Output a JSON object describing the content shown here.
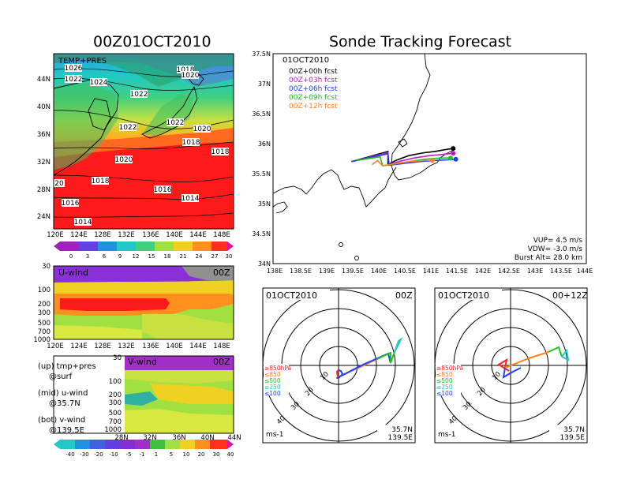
{
  "left_title": "00Z01OCT2010",
  "main_title": "Sonde Tracking Forecast",
  "colors": {
    "ocean_warm": "#ff1a1a",
    "ocean_orange": "#ff7a2a",
    "ocean_yellow": "#f0d020",
    "ocean_green": "#80d040",
    "ocean_cyan": "#20c8c8",
    "ocean_blue": "#2090e0",
    "track_00": "#000000",
    "track_03": "#c020c0",
    "track_06": "#2040ff",
    "track_09": "#20c020",
    "track_12": "#ff8020"
  },
  "surface_map": {
    "label": "TEMP+PRES",
    "lon_ticks": [
      "120E",
      "124E",
      "128E",
      "132E",
      "136E",
      "140E",
      "144E",
      "148E"
    ],
    "lat_ticks": [
      "44N",
      "40N",
      "36N",
      "32N",
      "28N",
      "24N"
    ],
    "isobar_labels": [
      "1026",
      "1022",
      "1024",
      "1022",
      "1018",
      "1020",
      "1022",
      "1022",
      "1020",
      "1018",
      "1018",
      "1020",
      "1018",
      "1016",
      "1014",
      "20",
      "1016",
      "1014",
      "1016"
    ],
    "colorbar_ticks": [
      "0",
      "3",
      "6",
      "9",
      "12",
      "15",
      "18",
      "21",
      "24",
      "27",
      "30"
    ]
  },
  "u_wind": {
    "label": "U-wind",
    "time": "00Z",
    "p_ticks": [
      "30",
      "100",
      "200",
      "300",
      "500",
      "700",
      "1000"
    ],
    "lon_ticks": [
      "120E",
      "124E",
      "128E",
      "132E",
      "136E",
      "140E",
      "144E",
      "148E"
    ]
  },
  "v_wind": {
    "label": "V-wind",
    "time": "00Z",
    "p_ticks": [
      "30",
      "100",
      "200",
      "300",
      "500",
      "700",
      "1000"
    ],
    "lat_ticks": [
      "28N",
      "32N",
      "36N",
      "40N",
      "44N"
    ],
    "colorbar_ticks": [
      "-40",
      "-30",
      "-20",
      "-10",
      "-5",
      "-1",
      "1",
      "5",
      "10",
      "20",
      "30",
      "40"
    ]
  },
  "notes": {
    "line1": "(up) tmp+pres",
    "line2": "@surf",
    "line3": "(mid) u-wind",
    "line4": "@35.7N",
    "line5": "(bot) v-wind",
    "line6": "@139.5E"
  },
  "track_map": {
    "date": "01OCT2010",
    "legend": [
      "00Z+00h fcst",
      "00Z+03h fcst",
      "00Z+06h fcst",
      "00Z+09h fcst",
      "00Z+12h fcst"
    ],
    "lat_ticks": [
      "37.5N",
      "37N",
      "36.5N",
      "36N",
      "35.5N",
      "35N",
      "34.5N",
      "34N"
    ],
    "lon_ticks": [
      "138E",
      "138.5E",
      "139E",
      "139.5E",
      "140E",
      "140.5E",
      "141E",
      "141.5E",
      "142E",
      "142.5E",
      "143E",
      "143.5E",
      "144E"
    ],
    "vup": "VUP= 4.5 m/s",
    "vdw": "VDW= -3.0 m/s",
    "burst": "Burst Alt= 28.0 km"
  },
  "hodo_left": {
    "date": "01OCT2010",
    "time": "00Z",
    "ring_labels": [
      "10",
      "20",
      "30",
      "40"
    ],
    "levels": [
      "≥850hPa",
      "≤850",
      "≤500",
      "≤250",
      "≤100"
    ],
    "units": "ms-1",
    "lat": "35.7N",
    "lon": "139.5E"
  },
  "hodo_right": {
    "date": "01OCT2010",
    "time": "00+12Z",
    "ring_labels": [
      "10",
      "20",
      "30",
      "40"
    ],
    "levels": [
      "≥850hPa",
      "≤850",
      "≤500",
      "≤250",
      "≤100"
    ],
    "units": "ms-1",
    "lat": "35.7N",
    "lon": "139.5E"
  },
  "chart_data": [
    {
      "type": "heatmap",
      "title": "TEMP+PRES",
      "xlabel": "",
      "ylabel": "",
      "x_range": [
        "120E",
        "150E"
      ],
      "y_range": [
        "22N",
        "48N"
      ],
      "isobars_hPa": [
        1014,
        1016,
        1018,
        1020,
        1022,
        1024,
        1026
      ],
      "colorbar": [
        0,
        3,
        6,
        9,
        12,
        15,
        18,
        21,
        24,
        27,
        30
      ]
    },
    {
      "type": "heatmap",
      "title": "U-wind",
      "x_range": [
        "120E",
        "150E"
      ],
      "y_range_hPa": [
        1000,
        30
      ],
      "log_pressure": true
    },
    {
      "type": "heatmap",
      "title": "V-wind",
      "x_range": [
        "26N",
        "44N"
      ],
      "y_range_hPa": [
        1000,
        30
      ],
      "colorbar": [
        -40,
        -30,
        -20,
        -10,
        -5,
        -1,
        1,
        5,
        10,
        20,
        30,
        40
      ]
    },
    {
      "type": "line",
      "title": "Sonde Tracking Forecast",
      "x_range": [
        138.0,
        144.0
      ],
      "y_range": [
        34.0,
        37.5
      ],
      "series": [
        {
          "name": "00Z+00h fcst",
          "color": "#000000",
          "lon": [
            139.5,
            140.2,
            140.2,
            140.35,
            140.6,
            140.9,
            141.1,
            141.3,
            141.45
          ],
          "lat": [
            35.7,
            35.87,
            35.65,
            35.72,
            35.8,
            35.85,
            35.87,
            35.9,
            35.92
          ]
        },
        {
          "name": "00Z+03h fcst",
          "color": "#c020c0",
          "lon": [
            139.5,
            140.2,
            140.22,
            140.4,
            140.7,
            141.0,
            141.25,
            141.45
          ],
          "lat": [
            35.7,
            35.85,
            35.65,
            35.7,
            35.76,
            35.8,
            35.82,
            35.84
          ]
        },
        {
          "name": "00Z+06h fcst",
          "color": "#2040ff",
          "lon": [
            139.5,
            140.2,
            140.22,
            140.5,
            140.8,
            141.1,
            141.35,
            141.5
          ],
          "lat": [
            35.7,
            35.83,
            35.64,
            35.67,
            35.7,
            35.72,
            35.73,
            35.74
          ]
        },
        {
          "name": "00Z+09h fcst",
          "color": "#20c020",
          "lon": [
            139.6,
            140.05,
            140.1,
            140.3,
            140.6,
            140.9,
            141.2,
            141.4
          ],
          "lat": [
            35.72,
            35.78,
            35.63,
            35.66,
            35.7,
            35.74,
            35.76,
            35.76
          ]
        },
        {
          "name": "00Z+12h fcst",
          "color": "#ff8020",
          "lon": [
            139.9,
            140.0,
            140.1,
            140.3,
            140.6,
            140.9,
            141.05
          ],
          "lat": [
            35.65,
            35.72,
            35.63,
            35.66,
            35.7,
            35.72,
            35.72
          ]
        }
      ]
    }
  ]
}
